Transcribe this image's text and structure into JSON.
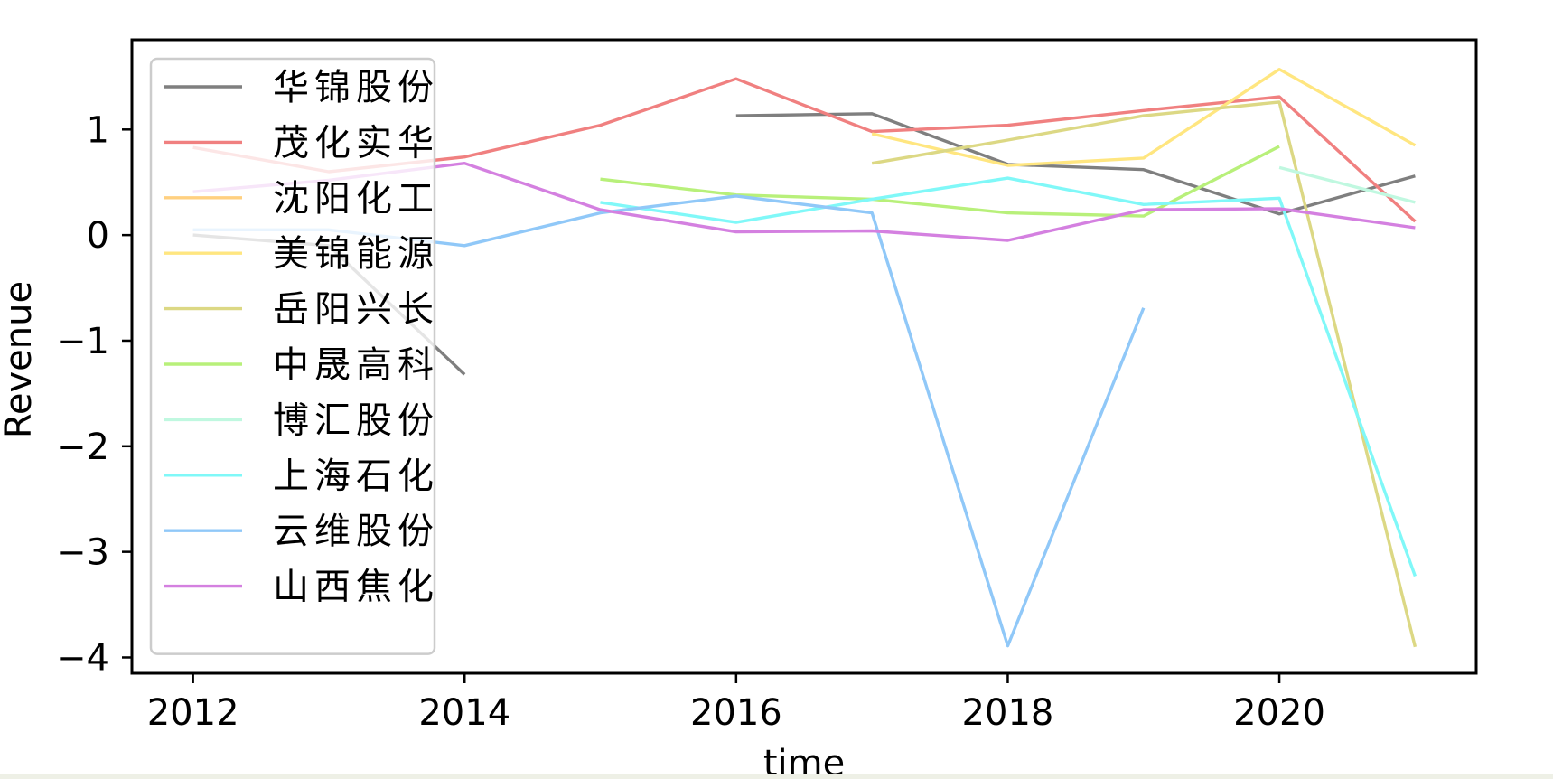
{
  "chart_data": {
    "type": "line",
    "title": "",
    "xlabel": "time",
    "ylabel": "Revenue",
    "xlim": [
      2011.55,
      2021.45
    ],
    "ylim": [
      -4.15,
      1.85
    ],
    "x_ticks": [
      2012,
      2014,
      2016,
      2018,
      2020
    ],
    "y_ticks": [
      1,
      0,
      -1,
      -2,
      -3,
      -4
    ],
    "y_tick_labels": [
      "1",
      "0",
      "−1",
      "−2",
      "−3",
      "−4"
    ],
    "grid": false,
    "legend_position": "upper-left",
    "series": [
      {
        "name": "华锦股份",
        "color": "#7f7f7f",
        "points": [
          [
            2012,
            0.0
          ],
          [
            2013,
            -0.1
          ],
          [
            2014,
            -1.32
          ],
          null,
          [
            2016,
            1.13
          ],
          [
            2017,
            1.15
          ],
          [
            2018,
            0.67
          ],
          [
            2019,
            0.62
          ],
          [
            2020,
            0.2
          ],
          [
            2021,
            0.56
          ]
        ]
      },
      {
        "name": "茂化实华",
        "color": "#f08080",
        "points": [
          [
            2012,
            0.83
          ],
          [
            2013,
            0.6
          ],
          [
            2014,
            0.74
          ],
          [
            2015,
            1.04
          ],
          [
            2016,
            1.48
          ],
          [
            2017,
            0.98
          ],
          [
            2018,
            1.04
          ],
          [
            2019,
            1.18
          ],
          [
            2020,
            1.31
          ],
          [
            2021,
            0.13
          ]
        ]
      },
      {
        "name": "沈阳化工",
        "color": "#ffd080",
        "points": []
      },
      {
        "name": "美锦能源",
        "color": "#ffe680",
        "points": [
          [
            2017,
            0.96
          ],
          [
            2018,
            0.66
          ],
          [
            2019,
            0.73
          ],
          [
            2020,
            1.57
          ],
          [
            2021,
            0.85
          ]
        ]
      },
      {
        "name": "岳阳兴长",
        "color": "#dcd884",
        "points": [
          [
            2017,
            0.68
          ],
          [
            2018,
            0.9
          ],
          [
            2019,
            1.13
          ],
          [
            2020,
            1.26
          ],
          [
            2021,
            -3.9
          ]
        ]
      },
      {
        "name": "中晟高科",
        "color": "#b8f07a",
        "points": [
          [
            2015,
            0.53
          ],
          [
            2016,
            0.38
          ],
          [
            2017,
            0.34
          ],
          [
            2018,
            0.21
          ],
          [
            2019,
            0.18
          ],
          [
            2020,
            0.84
          ]
        ]
      },
      {
        "name": "博汇股份",
        "color": "#c0f8e0",
        "points": [
          [
            2020,
            0.64
          ],
          [
            2021,
            0.31
          ]
        ]
      },
      {
        "name": "上海石化",
        "color": "#80f8f8",
        "points": [
          [
            2015,
            0.31
          ],
          [
            2016,
            0.12
          ],
          [
            2017,
            0.34
          ],
          [
            2018,
            0.54
          ],
          [
            2019,
            0.29
          ],
          [
            2020,
            0.35
          ],
          [
            2021,
            -3.23
          ]
        ]
      },
      {
        "name": "云维股份",
        "color": "#90c8f8",
        "points": [
          [
            2012,
            0.05
          ],
          [
            2013,
            0.05
          ],
          [
            2014,
            -0.1
          ],
          [
            2015,
            0.21
          ],
          [
            2016,
            0.37
          ],
          [
            2017,
            0.21
          ],
          [
            2018,
            -3.89
          ],
          [
            2019,
            -0.69
          ]
        ]
      },
      {
        "name": "山西焦化",
        "color": "#d480e0",
        "points": [
          [
            2012,
            0.41
          ],
          [
            2013,
            0.52
          ],
          [
            2014,
            0.68
          ],
          [
            2015,
            0.24
          ],
          [
            2016,
            0.03
          ],
          [
            2017,
            0.04
          ],
          [
            2018,
            -0.05
          ],
          [
            2019,
            0.24
          ],
          [
            2020,
            0.25
          ],
          [
            2021,
            0.07
          ]
        ]
      }
    ]
  }
}
